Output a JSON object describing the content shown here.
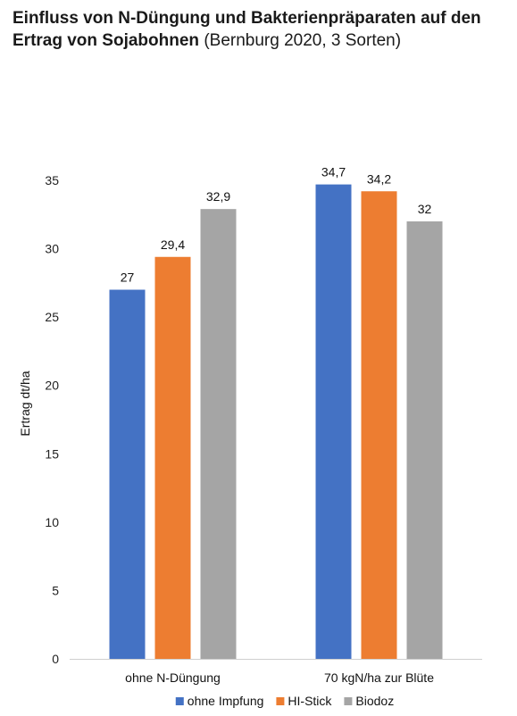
{
  "title": {
    "bold_line": "Einfluss von N-Düngung und Bakterienpräparaten auf den Ertrag von Sojabohnen",
    "normal_part": "(Bernburg 2020, 3 Sorten)"
  },
  "chart_data": {
    "type": "bar",
    "title": "Einfluss von N-Düngung und Bakterienpräparaten auf den Ertrag von Sojabohnen (Bernburg 2020, 3 Sorten)",
    "xlabel": "",
    "ylabel": "Ertrag dt/ha",
    "ylim": [
      0,
      35
    ],
    "yticks": [
      0,
      5,
      10,
      15,
      20,
      25,
      30,
      35
    ],
    "grid": false,
    "legend_position": "bottom",
    "categories": [
      "ohne N-Düngung",
      "70 kgN/ha zur Blüte"
    ],
    "series": [
      {
        "name": "ohne Impfung",
        "color": "#4472c4",
        "values": [
          27,
          34.7
        ],
        "labels": [
          "27",
          "34,7"
        ]
      },
      {
        "name": "HI-Stick",
        "color": "#ed7d31",
        "values": [
          29.4,
          34.2
        ],
        "labels": [
          "29,4",
          "34,2"
        ]
      },
      {
        "name": "Biodoz",
        "color": "#a5a5a5",
        "values": [
          32.9,
          32
        ],
        "labels": [
          "32,9",
          "32"
        ]
      }
    ]
  }
}
